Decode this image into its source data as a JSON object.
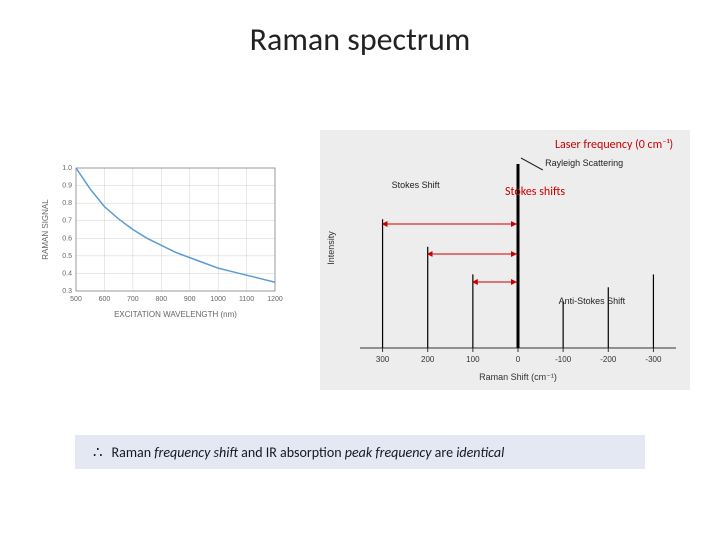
{
  "title": "Raman spectrum",
  "left_chart": {
    "type": "line",
    "xlabel": "EXCITATION WAVELENGTH (nm)",
    "ylabel": "RAMAN SIGNAL",
    "xlim": [
      500,
      1200
    ],
    "ylim": [
      0.3,
      1.0
    ],
    "xticks": [
      500,
      600,
      700,
      800,
      900,
      1000,
      1100,
      1200
    ],
    "yticks": [
      0.3,
      0.4,
      0.5,
      0.6,
      0.7,
      0.8,
      0.9,
      1.0
    ],
    "line_color": "#5b9bd5",
    "grid_color": "#d0d0d0",
    "axis_color": "#888888",
    "tick_font_size": 7,
    "label_font_size": 8,
    "label_color": "#666666",
    "points_x": [
      500,
      550,
      600,
      650,
      700,
      750,
      800,
      850,
      900,
      950,
      1000,
      1050,
      1100,
      1150,
      1200
    ],
    "points_y": [
      1.0,
      0.88,
      0.78,
      0.71,
      0.65,
      0.6,
      0.56,
      0.52,
      0.49,
      0.46,
      0.43,
      0.41,
      0.39,
      0.37,
      0.35
    ]
  },
  "right_chart": {
    "type": "stem",
    "background_color": "#ededed",
    "axis_color": "#333333",
    "tick_font_size": 8,
    "label_font_size": 9,
    "xlabel": "Raman Shift (cm⁻¹)",
    "ylabel": "Intensity",
    "xlim": [
      350,
      -350
    ],
    "xticks": [
      300,
      200,
      100,
      0,
      -100,
      -200,
      -300
    ],
    "stems": [
      {
        "x": 300,
        "h": 0.7
      },
      {
        "x": 200,
        "h": 0.55
      },
      {
        "x": 100,
        "h": 0.4
      },
      {
        "x": 0,
        "h": 1.0,
        "w": 3
      },
      {
        "x": -100,
        "h": 0.25
      },
      {
        "x": -200,
        "h": 0.33
      },
      {
        "x": -300,
        "h": 0.4
      }
    ],
    "line_labels": {
      "rayleigh": "Rayleigh Scattering",
      "stokes": "Stokes Shift",
      "anti": "Anti-Stokes Shift"
    },
    "annotations": {
      "laser": "Laser frequency (0 cm⁻¹)",
      "stokes_red": "Stokes shifts"
    },
    "arrow_color": "#cc0000"
  },
  "bottom_bar": {
    "text_before": "Raman ",
    "em1": "frequency shift",
    "text_mid": " and IR absorption ",
    "em2": "peak frequency",
    "text_mid2": " are ",
    "em3": "identical",
    "background": "#e3e8f2",
    "therefore": "∴"
  }
}
